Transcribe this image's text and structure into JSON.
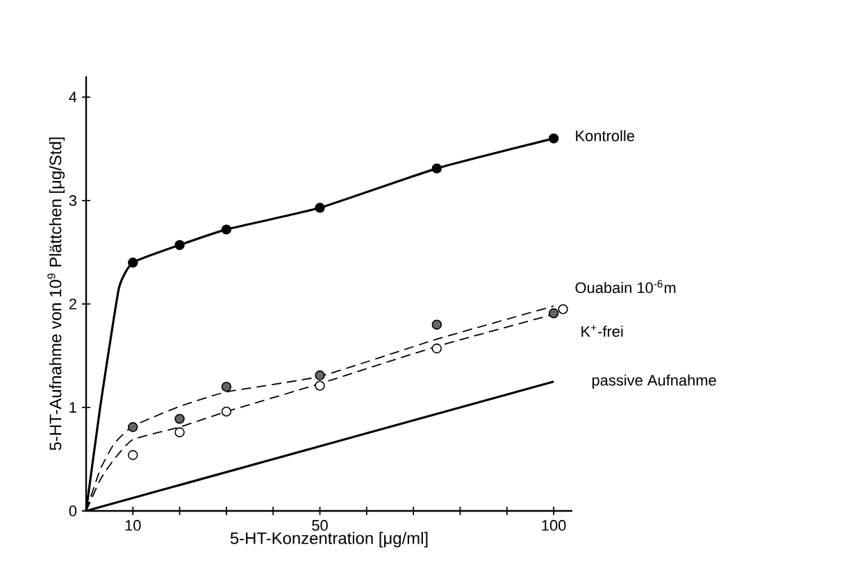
{
  "chart_data": {
    "type": "line",
    "xlabel": "5-HT-Konzentration [μg/ml]",
    "ylabel": "5-HT-Aufnahme von 10$^{9}$ Plättchen [μg/Std]",
    "xlim": [
      0,
      104
    ],
    "ylim": [
      0,
      4.2
    ],
    "xticks": [
      10,
      {
        "value": 20,
        "label": null
      },
      {
        "value": 30,
        "label": null
      },
      {
        "value": 40,
        "label": null
      },
      50,
      {
        "value": 60,
        "label": null
      },
      {
        "value": 70,
        "label": null
      },
      {
        "value": 80,
        "label": null
      },
      {
        "value": 90,
        "label": null
      },
      100
    ],
    "yticks": [
      0,
      1,
      2,
      3,
      4
    ],
    "grid": false,
    "series": [
      {
        "name": "Kontrolle",
        "color": "#000000",
        "marker": "none",
        "line_style": "solid",
        "x": [
          0,
          3,
          7,
          10,
          20,
          30,
          50,
          75,
          100
        ],
        "values": [
          0,
          1.0,
          2.15,
          2.4,
          2.57,
          2.72,
          2.93,
          3.31,
          3.6
        ]
      },
      {
        "type": "scatter",
        "color": "#000000",
        "marker": "circle",
        "x": [
          10,
          20,
          30,
          50,
          75,
          100
        ],
        "values": [
          2.4,
          2.57,
          2.72,
          2.93,
          3.31,
          3.6
        ]
      },
      {
        "name": "Ouabain 10$^{-6}$m",
        "color": "#000000",
        "marker": "none",
        "line_style": "dashed",
        "x": [
          0,
          3,
          6,
          10,
          20,
          30,
          50,
          75,
          100
        ],
        "values": [
          0,
          0.4,
          0.65,
          0.82,
          1.01,
          1.15,
          1.3,
          1.66,
          1.98
        ]
      },
      {
        "type": "scatter",
        "color": "#666666",
        "marker": "circle",
        "x": [
          10,
          20,
          30,
          50,
          75,
          100
        ],
        "values": [
          0.81,
          0.89,
          1.2,
          1.31,
          1.8,
          1.91
        ]
      },
      {
        "name": "K$^{+}$-frei",
        "color": "#000000",
        "marker": "none",
        "line_style": "dashed",
        "x": [
          0,
          3,
          6,
          10,
          20,
          30,
          50,
          75,
          100
        ],
        "values": [
          0,
          0.3,
          0.5,
          0.69,
          0.81,
          0.96,
          1.23,
          1.59,
          1.9
        ]
      },
      {
        "type": "scatter",
        "color": "#ffffff",
        "marker": "circle",
        "x": [
          10,
          20,
          30,
          50,
          75,
          102
        ],
        "values": [
          0.54,
          0.76,
          0.96,
          1.21,
          1.57,
          1.95
        ]
      },
      {
        "name": "passive Aufnahme",
        "color": "#000000",
        "marker": "none",
        "line_style": "solid",
        "x": [
          0,
          100
        ],
        "values": [
          0,
          1.25
        ]
      }
    ]
  }
}
